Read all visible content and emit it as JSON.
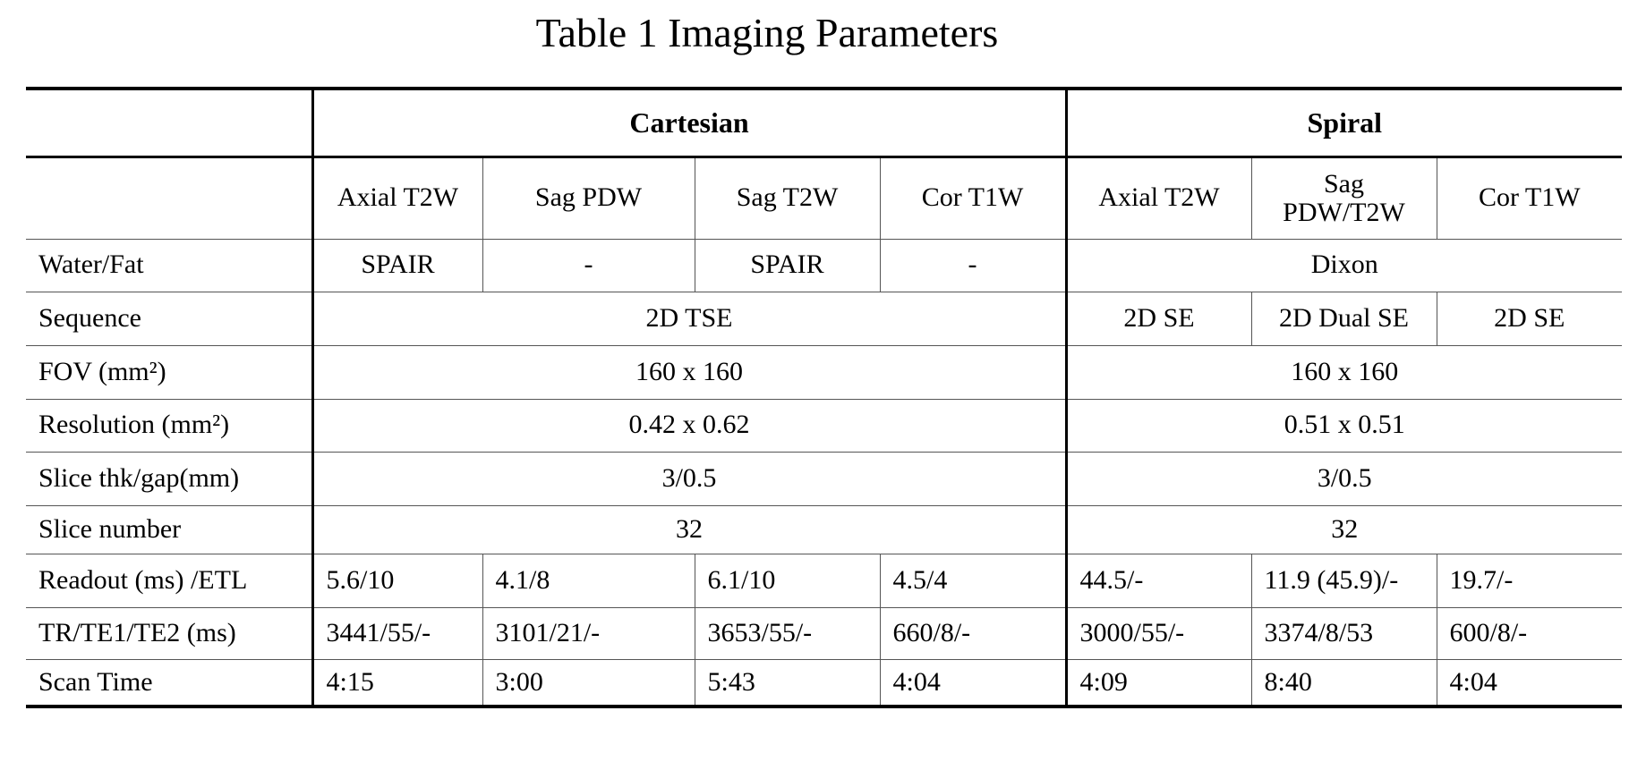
{
  "title": "Table 1 Imaging Parameters",
  "groups": [
    "Cartesian",
    "Spiral"
  ],
  "columns": {
    "cartesian": [
      "Axial T2W",
      "Sag PDW",
      "Sag T2W",
      "Cor T1W"
    ],
    "spiral": [
      "Axial T2W",
      "Sag PDW/T2W",
      "Cor T1W"
    ]
  },
  "rows": [
    {
      "label": "Water/Fat",
      "cartesian": [
        "SPAIR",
        "-",
        "SPAIR",
        "-"
      ],
      "spiral": "Dixon"
    },
    {
      "label": "Sequence",
      "cartesian": "2D TSE",
      "spiral": [
        "2D SE",
        "2D Dual SE",
        "2D SE"
      ]
    },
    {
      "label": "FOV  (mm²)",
      "cartesian": "160 x 160",
      "spiral": "160 x 160"
    },
    {
      "label": "Resolution (mm²)",
      "cartesian": "0.42 x 0.62",
      "spiral": "0.51 x 0.51"
    },
    {
      "label": "Slice thk/gap(mm)",
      "cartesian": "3/0.5",
      "spiral": "3/0.5"
    },
    {
      "label": "Slice number",
      "cartesian": "32",
      "spiral": "32"
    },
    {
      "label": "Readout (ms) /ETL",
      "cartesian": [
        "5.6/10",
        "4.1/8",
        "6.1/10",
        "4.5/4"
      ],
      "spiral": [
        "44.5/-",
        "11.9 (45.9)/-",
        "19.7/-"
      ]
    },
    {
      "label": "TR/TE1/TE2 (ms)",
      "cartesian": [
        "3441/55/-",
        "3101/21/-",
        "3653/55/-",
        "660/8/-"
      ],
      "spiral": [
        "3000/55/-",
        "3374/8/53",
        "600/8/-"
      ]
    },
    {
      "label": "Scan Time",
      "cartesian": [
        "4:15",
        "3:00",
        "5:43",
        "4:04"
      ],
      "spiral": [
        "4:09",
        "8:40",
        "4:04"
      ]
    }
  ]
}
